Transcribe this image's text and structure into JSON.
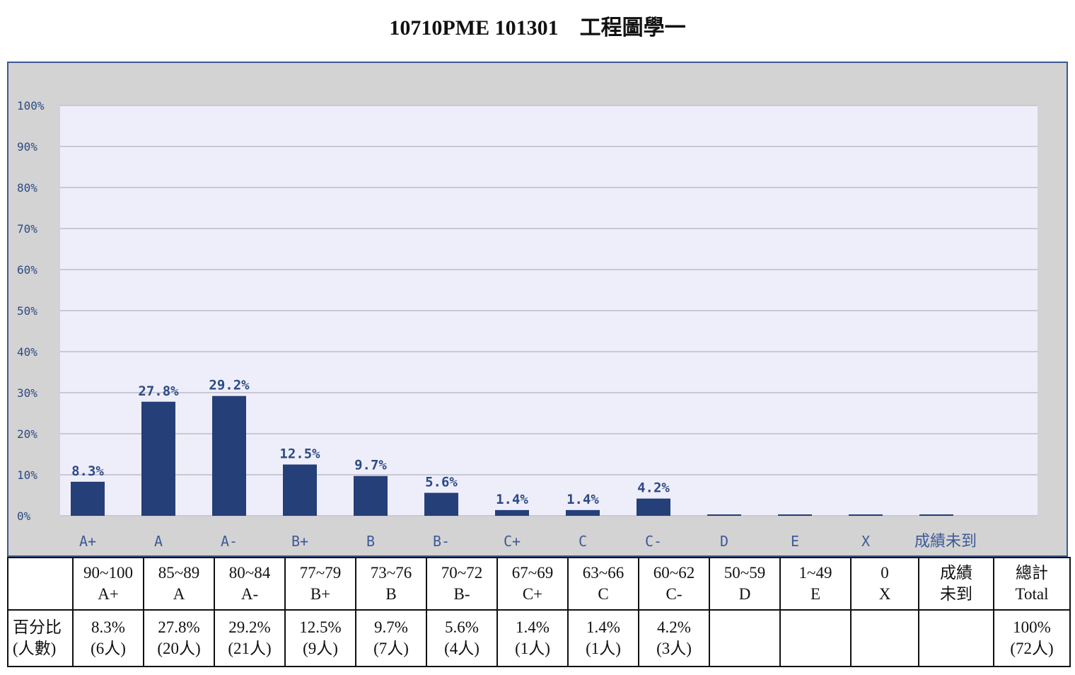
{
  "page_title": "10710PME 101301　工程圖學一",
  "chart_data": {
    "type": "bar",
    "categories": [
      "A+",
      "A",
      "A-",
      "B+",
      "B",
      "B-",
      "C+",
      "C",
      "C-",
      "D",
      "E",
      "X",
      "成績未到"
    ],
    "values": [
      8.3,
      27.8,
      29.2,
      12.5,
      9.7,
      5.6,
      1.4,
      1.4,
      4.2,
      0,
      0,
      0,
      0
    ],
    "data_labels": [
      "8.3%",
      "27.8%",
      "29.2%",
      "12.5%",
      "9.7%",
      "5.6%",
      "1.4%",
      "1.4%",
      "4.2%",
      "",
      "",
      "",
      ""
    ],
    "ylim": [
      0,
      100
    ],
    "yticks": [
      "0%",
      "10%",
      "20%",
      "30%",
      "40%",
      "50%",
      "60%",
      "70%",
      "80%",
      "90%",
      "100%"
    ],
    "grid": true,
    "legend": "none",
    "title": "",
    "xlabel": "",
    "ylabel": ""
  },
  "table": {
    "header": [
      {
        "range": "90~100",
        "grade": "A+"
      },
      {
        "range": "85~89",
        "grade": "A"
      },
      {
        "range": "80~84",
        "grade": "A-"
      },
      {
        "range": "77~79",
        "grade": "B+"
      },
      {
        "range": "73~76",
        "grade": "B"
      },
      {
        "range": "70~72",
        "grade": "B-"
      },
      {
        "range": "67~69",
        "grade": "C+"
      },
      {
        "range": "63~66",
        "grade": "C"
      },
      {
        "range": "60~62",
        "grade": "C-"
      },
      {
        "range": "50~59",
        "grade": "D"
      },
      {
        "range": "1~49",
        "grade": "E"
      },
      {
        "range": "0",
        "grade": "X"
      },
      {
        "range": "成績",
        "grade": "未到"
      },
      {
        "range": "總計",
        "grade": "Total"
      }
    ],
    "row_label": {
      "line1": "百分比",
      "line2": "(人數)"
    },
    "percentages": [
      {
        "pct": "8.3%",
        "count": "(6人)"
      },
      {
        "pct": "27.8%",
        "count": "(20人)"
      },
      {
        "pct": "29.2%",
        "count": "(21人)"
      },
      {
        "pct": "12.5%",
        "count": "(9人)"
      },
      {
        "pct": "9.7%",
        "count": "(7人)"
      },
      {
        "pct": "5.6%",
        "count": "(4人)"
      },
      {
        "pct": "1.4%",
        "count": "(1人)"
      },
      {
        "pct": "1.4%",
        "count": "(1人)"
      },
      {
        "pct": "4.2%",
        "count": "(3人)"
      },
      {
        "pct": "",
        "count": ""
      },
      {
        "pct": "",
        "count": ""
      },
      {
        "pct": "",
        "count": ""
      },
      {
        "pct": "",
        "count": ""
      },
      {
        "pct": "100%",
        "count": "(72人)"
      }
    ]
  },
  "colors": {
    "bar": "#253f78",
    "plot_bg": "#eeeefa",
    "frame_bg": "#d3d3d3",
    "gridline": "#c9c9d4",
    "label": "#2c4a84"
  }
}
